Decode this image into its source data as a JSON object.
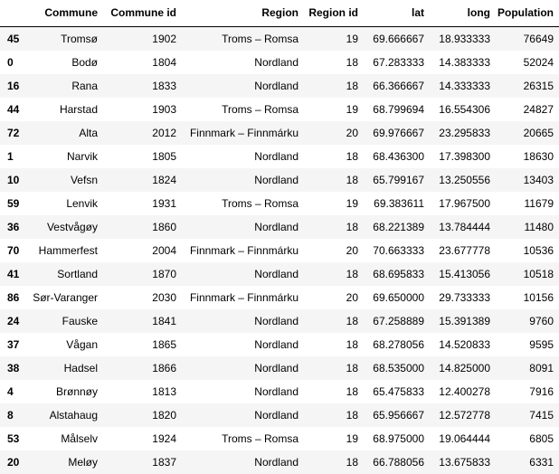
{
  "table": {
    "columns": [
      "Commune",
      "Commune id",
      "Region",
      "Region id",
      "lat",
      "long",
      "Population"
    ],
    "rows": [
      {
        "index": "45",
        "cells": [
          "Tromsø",
          "1902",
          "Troms – Romsa",
          "19",
          "69.666667",
          "18.933333",
          "76649"
        ]
      },
      {
        "index": "0",
        "cells": [
          "Bodø",
          "1804",
          "Nordland",
          "18",
          "67.283333",
          "14.383333",
          "52024"
        ]
      },
      {
        "index": "16",
        "cells": [
          "Rana",
          "1833",
          "Nordland",
          "18",
          "66.366667",
          "14.333333",
          "26315"
        ]
      },
      {
        "index": "44",
        "cells": [
          "Harstad",
          "1903",
          "Troms – Romsa",
          "19",
          "68.799694",
          "16.554306",
          "24827"
        ]
      },
      {
        "index": "72",
        "cells": [
          "Alta",
          "2012",
          "Finnmark – Finnmárku",
          "20",
          "69.976667",
          "23.295833",
          "20665"
        ]
      },
      {
        "index": "1",
        "cells": [
          "Narvik",
          "1805",
          "Nordland",
          "18",
          "68.436300",
          "17.398300",
          "18630"
        ]
      },
      {
        "index": "10",
        "cells": [
          "Vefsn",
          "1824",
          "Nordland",
          "18",
          "65.799167",
          "13.250556",
          "13403"
        ]
      },
      {
        "index": "59",
        "cells": [
          "Lenvik",
          "1931",
          "Troms – Romsa",
          "19",
          "69.383611",
          "17.967500",
          "11679"
        ]
      },
      {
        "index": "36",
        "cells": [
          "Vestvågøy",
          "1860",
          "Nordland",
          "18",
          "68.221389",
          "13.784444",
          "11480"
        ]
      },
      {
        "index": "70",
        "cells": [
          "Hammerfest",
          "2004",
          "Finnmark – Finnmárku",
          "20",
          "70.663333",
          "23.677778",
          "10536"
        ]
      },
      {
        "index": "41",
        "cells": [
          "Sortland",
          "1870",
          "Nordland",
          "18",
          "68.695833",
          "15.413056",
          "10518"
        ]
      },
      {
        "index": "86",
        "cells": [
          "Sør-Varanger",
          "2030",
          "Finnmark – Finnmárku",
          "20",
          "69.650000",
          "29.733333",
          "10156"
        ]
      },
      {
        "index": "24",
        "cells": [
          "Fauske",
          "1841",
          "Nordland",
          "18",
          "67.258889",
          "15.391389",
          "9760"
        ]
      },
      {
        "index": "37",
        "cells": [
          "Vågan",
          "1865",
          "Nordland",
          "18",
          "68.278056",
          "14.520833",
          "9595"
        ]
      },
      {
        "index": "38",
        "cells": [
          "Hadsel",
          "1866",
          "Nordland",
          "18",
          "68.535000",
          "14.825000",
          "8091"
        ]
      },
      {
        "index": "4",
        "cells": [
          "Brønnøy",
          "1813",
          "Nordland",
          "18",
          "65.475833",
          "12.400278",
          "7916"
        ]
      },
      {
        "index": "8",
        "cells": [
          "Alstahaug",
          "1820",
          "Nordland",
          "18",
          "65.956667",
          "12.572778",
          "7415"
        ]
      },
      {
        "index": "53",
        "cells": [
          "Målselv",
          "1924",
          "Troms – Romsa",
          "19",
          "68.975000",
          "19.064444",
          "6805"
        ]
      },
      {
        "index": "20",
        "cells": [
          "Meløy",
          "1837",
          "Nordland",
          "18",
          "66.788056",
          "13.675833",
          "6331"
        ]
      }
    ]
  }
}
